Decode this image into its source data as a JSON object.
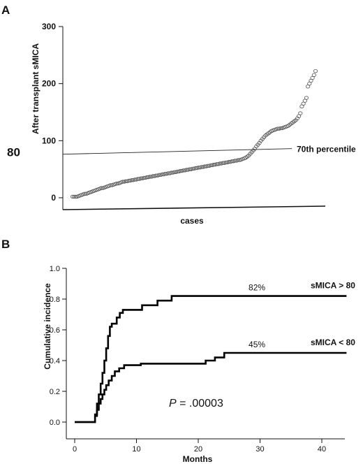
{
  "chart_data": [
    {
      "type": "scatter",
      "panel_label": "A",
      "ylabel": "After transplant sMICA",
      "xlabel": "cases",
      "ylim": [
        0,
        300
      ],
      "yticks": [
        0,
        100,
        200,
        300
      ],
      "reference_line": {
        "value": 80,
        "value_label": "80",
        "label": "70th percentile"
      },
      "grid": false,
      "values": [
        2,
        2,
        2,
        2,
        3,
        4,
        5,
        6,
        7,
        7,
        8,
        9,
        10,
        11,
        12,
        13,
        14,
        15,
        16,
        17,
        17,
        18,
        19,
        20,
        21,
        22,
        22,
        23,
        24,
        25,
        25,
        26,
        27,
        28,
        28,
        29,
        29,
        30,
        30,
        31,
        31,
        32,
        32,
        33,
        33,
        34,
        34,
        35,
        35,
        36,
        36,
        37,
        37,
        38,
        38,
        39,
        39,
        40,
        40,
        41,
        41,
        42,
        42,
        43,
        43,
        44,
        44,
        45,
        45,
        46,
        46,
        47,
        47,
        48,
        48,
        49,
        49,
        50,
        50,
        51,
        51,
        52,
        52,
        53,
        53,
        54,
        54,
        55,
        55,
        56,
        56,
        57,
        57,
        58,
        58,
        59,
        59,
        60,
        60,
        61,
        61,
        62,
        62,
        63,
        63,
        64,
        64,
        65,
        65,
        66,
        66,
        67,
        68,
        69,
        70,
        72,
        74,
        77,
        80,
        83,
        86,
        90,
        93,
        96,
        100,
        103,
        106,
        109,
        111,
        113,
        115,
        117,
        118,
        119,
        120,
        121,
        121,
        122,
        122,
        123,
        124,
        125,
        126,
        128,
        130,
        132,
        134,
        136,
        139,
        143,
        148,
        160,
        165,
        170,
        175,
        195,
        200,
        205,
        210,
        215,
        222
      ]
    },
    {
      "type": "line",
      "panel_label": "B",
      "ylabel": "Cumulative incidence",
      "xlabel": "Months",
      "xlim": [
        0,
        44
      ],
      "ylim": [
        0,
        1.0
      ],
      "xticks": [
        0,
        10,
        20,
        30,
        40
      ],
      "yticks": [
        "0.0",
        "0.2",
        "0.4",
        "0.6",
        "0.8",
        "1.0"
      ],
      "grid": false,
      "annotation": {
        "p_label": "P",
        "p_text": " = .00003"
      },
      "series": [
        {
          "name": "sMICA > 80",
          "end_label": "82%",
          "steps": [
            [
              0,
              0
            ],
            [
              3,
              0
            ],
            [
              3.3,
              0.05
            ],
            [
              3.6,
              0.12
            ],
            [
              3.9,
              0.18
            ],
            [
              4.2,
              0.25
            ],
            [
              4.5,
              0.32
            ],
            [
              4.8,
              0.4
            ],
            [
              5.1,
              0.48
            ],
            [
              5.4,
              0.56
            ],
            [
              5.7,
              0.62
            ],
            [
              6.0,
              0.64
            ],
            [
              6.5,
              0.64
            ],
            [
              6.8,
              0.68
            ],
            [
              7.3,
              0.71
            ],
            [
              7.8,
              0.73
            ],
            [
              10.7,
              0.73
            ],
            [
              10.9,
              0.76
            ],
            [
              13.2,
              0.76
            ],
            [
              13.4,
              0.79
            ],
            [
              15.5,
              0.79
            ],
            [
              15.7,
              0.82
            ],
            [
              44,
              0.82
            ]
          ]
        },
        {
          "name": "sMICA < 80",
          "end_label": "45%",
          "steps": [
            [
              0,
              0
            ],
            [
              3,
              0
            ],
            [
              3.3,
              0.04
            ],
            [
              3.6,
              0.08
            ],
            [
              3.9,
              0.12
            ],
            [
              4.2,
              0.15
            ],
            [
              4.5,
              0.18
            ],
            [
              4.8,
              0.21
            ],
            [
              5.1,
              0.24
            ],
            [
              5.5,
              0.27
            ],
            [
              6.0,
              0.3
            ],
            [
              6.5,
              0.33
            ],
            [
              7.2,
              0.35
            ],
            [
              8.0,
              0.37
            ],
            [
              10.5,
              0.37
            ],
            [
              10.7,
              0.38
            ],
            [
              21.0,
              0.38
            ],
            [
              21.2,
              0.4
            ],
            [
              22.5,
              0.4
            ],
            [
              22.7,
              0.42
            ],
            [
              24.0,
              0.42
            ],
            [
              24.2,
              0.45
            ],
            [
              44,
              0.45
            ]
          ]
        }
      ]
    }
  ]
}
